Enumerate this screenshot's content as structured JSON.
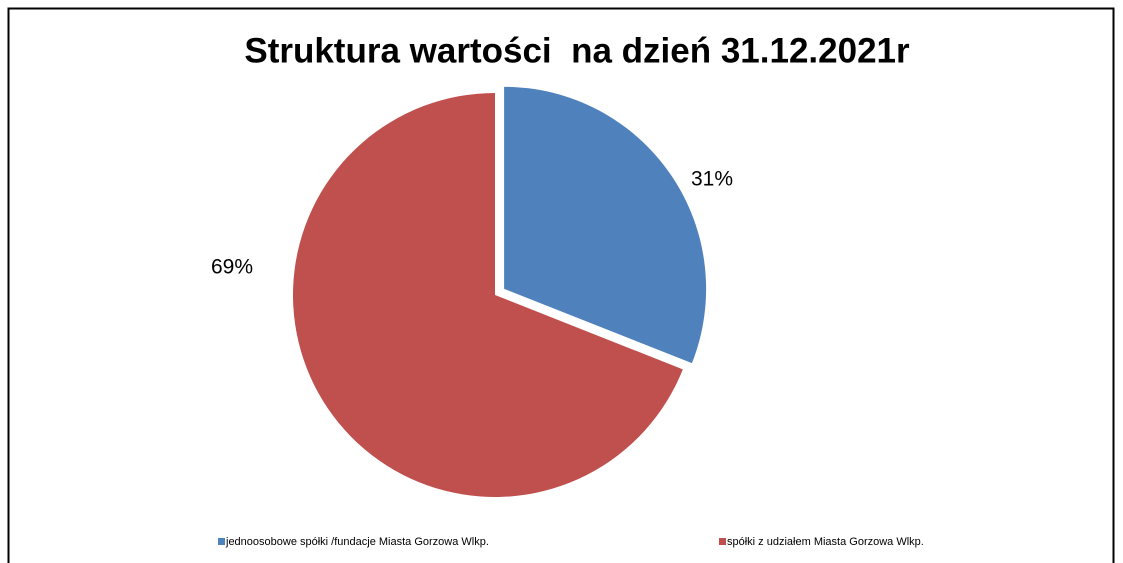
{
  "chart_data": {
    "type": "pie",
    "title": "Struktura wartości  na dzień 31.12.2021r",
    "categories": [
      "jednoosobowe spółki /fundacje Miasta Gorzowa Wlkp.",
      "spółki z udziałem Miasta Gorzowa Wlkp."
    ],
    "values": [
      31,
      69
    ],
    "value_labels": [
      "31%",
      "69%"
    ],
    "colors": [
      "#4f81bd",
      "#c0504d"
    ],
    "legend": "bottom"
  }
}
